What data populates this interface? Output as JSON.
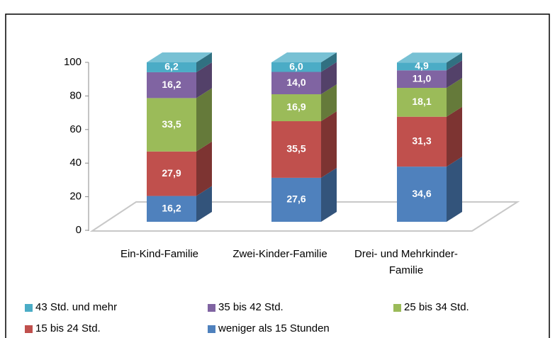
{
  "chart_data": {
    "type": "bar",
    "stacked": true,
    "categories": [
      "Ein-Kind-Familie",
      "Zwei-Kinder-Familie",
      "Drei- und Mehrkinder-Familie"
    ],
    "series": [
      {
        "name": "weniger als 15 Stunden",
        "color": "#4f81bd",
        "values": [
          16.2,
          27.6,
          34.6
        ],
        "value_labels": [
          "16,2",
          "27,6",
          "34,6"
        ]
      },
      {
        "name": "15 bis 24 Std.",
        "color": "#c0504d",
        "values": [
          27.9,
          35.5,
          31.3
        ],
        "value_labels": [
          "27,9",
          "35,5",
          "31,3"
        ]
      },
      {
        "name": "25 bis 34 Std.",
        "color": "#9bbb59",
        "values": [
          33.5,
          16.9,
          18.1
        ],
        "value_labels": [
          "33,5",
          "16,9",
          "18,1"
        ]
      },
      {
        "name": "35 bis 42 Std.",
        "color": "#8064a2",
        "values": [
          16.2,
          14.0,
          11.0
        ],
        "value_labels": [
          "16,2",
          "14,0",
          "11,0"
        ]
      },
      {
        "name": "43 Std. und mehr",
        "color": "#4bacc6",
        "values": [
          6.2,
          6.0,
          4.9
        ],
        "value_labels": [
          "6,2",
          "6,0",
          "4,9"
        ]
      }
    ],
    "ylim": [
      0,
      100
    ],
    "yticks": [
      0,
      20,
      40,
      60,
      80,
      100
    ],
    "legend": "bottom"
  }
}
